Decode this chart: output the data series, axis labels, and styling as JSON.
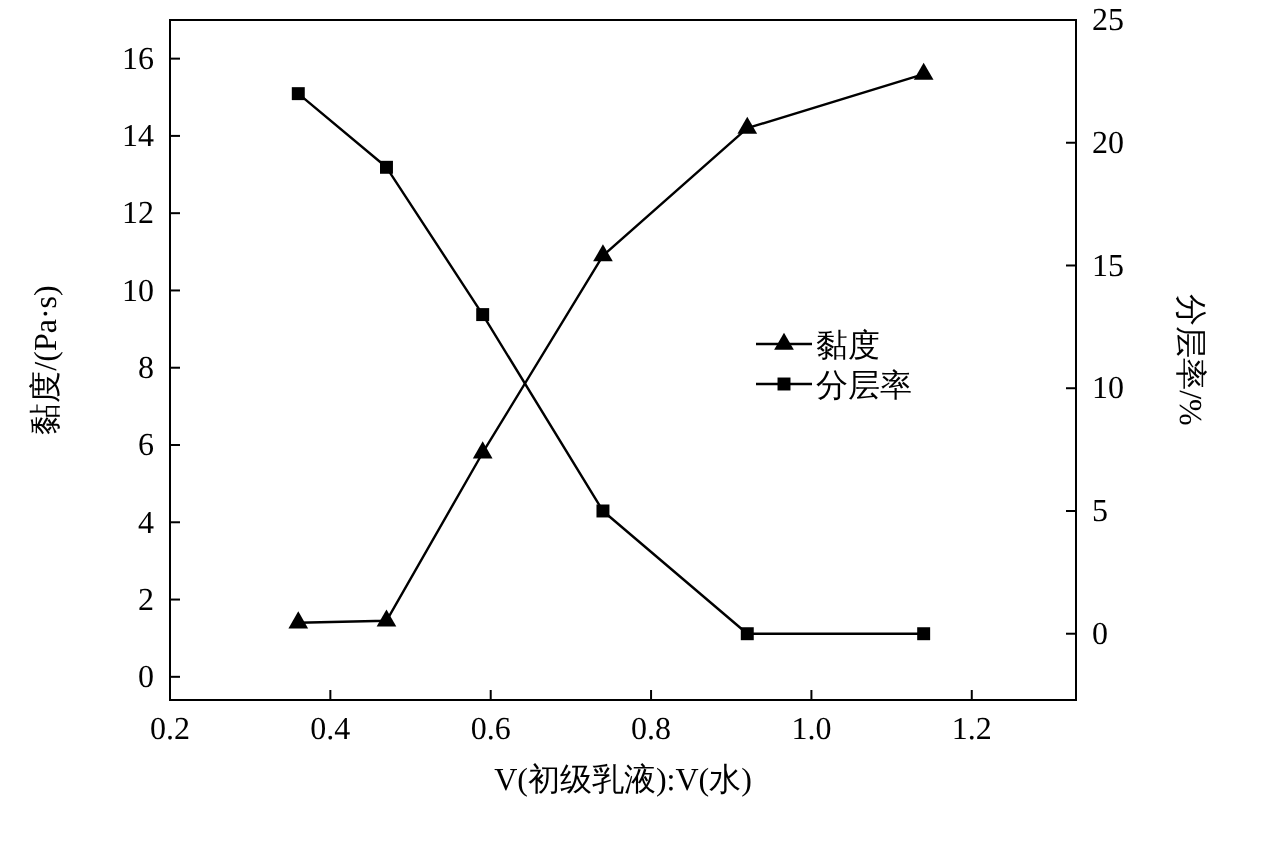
{
  "chart_data": {
    "type": "line",
    "xlabel": "V(初级乳液):V(水)",
    "ylabel": "黏度/(Pa·s)",
    "y2label": "分层率/%",
    "xlim": [
      0.2,
      1.33
    ],
    "xticks": [
      {
        "value": 0.2,
        "label": "0.2"
      },
      {
        "value": 0.4,
        "label": "0.4"
      },
      {
        "value": 0.6,
        "label": "0.6"
      },
      {
        "value": 0.8,
        "label": "0.8"
      },
      {
        "value": 1.0,
        "label": "1.0"
      },
      {
        "value": 1.2,
        "label": "1.2"
      }
    ],
    "ylim": [
      -0.6,
      17
    ],
    "yticks": [
      0,
      2,
      4,
      6,
      8,
      10,
      12,
      14,
      16
    ],
    "y2lim": [
      -2.7,
      25
    ],
    "y2ticks": [
      0,
      5,
      10,
      15,
      20,
      25
    ],
    "legend": "right",
    "grid": false,
    "series": [
      {
        "name": "黏度",
        "color": "#000000",
        "marker": "triangle",
        "x": [
          0.36,
          0.47,
          0.59,
          0.74,
          0.92,
          1.14
        ],
        "values": [
          1.4,
          1.45,
          5.8,
          10.9,
          14.2,
          15.6
        ]
      },
      {
        "name": "分层率",
        "color": "#000000",
        "marker": "square",
        "axis": "y2",
        "x": [
          0.36,
          0.47,
          0.59,
          0.74,
          0.92,
          1.14
        ],
        "values": [
          22,
          19,
          13,
          5,
          0,
          0
        ]
      }
    ]
  }
}
